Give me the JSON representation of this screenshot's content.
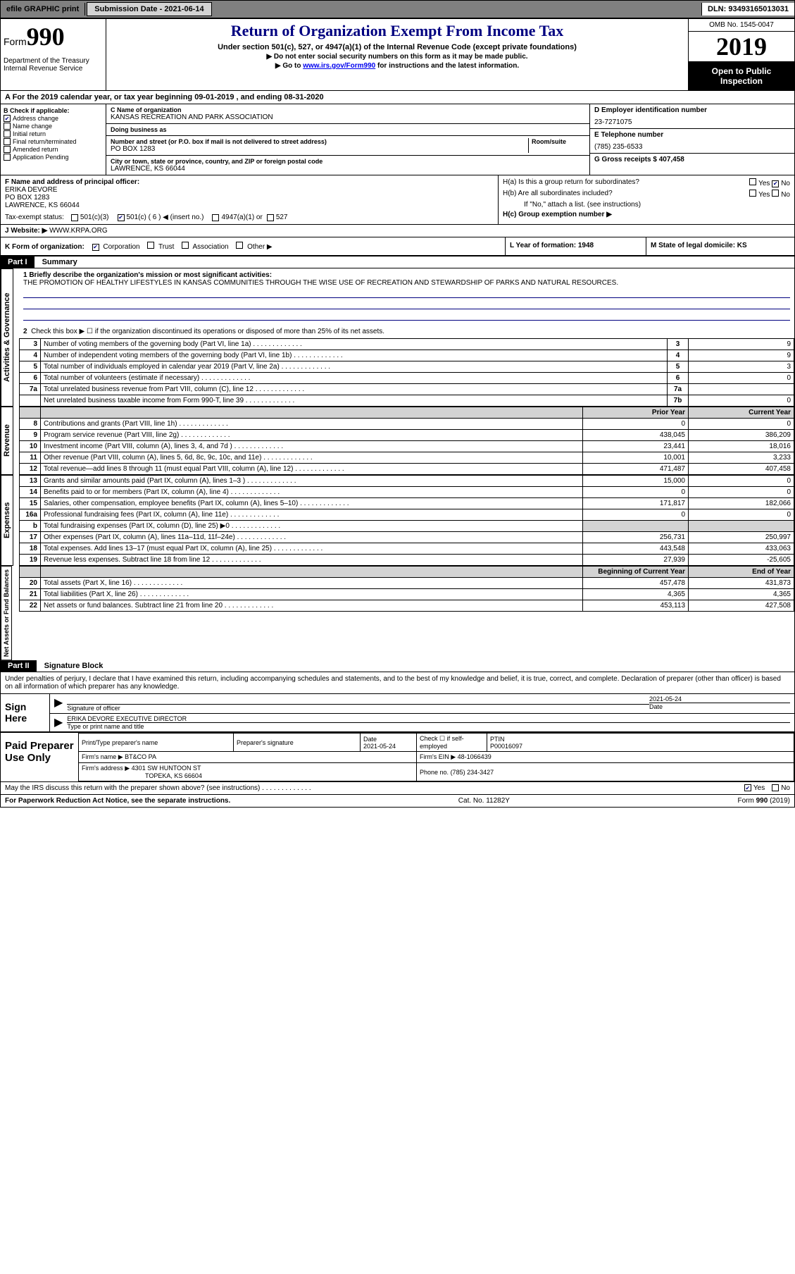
{
  "topbar": {
    "efile": "efile GRAPHIC print",
    "submission_label": "Submission Date - 2021-06-14",
    "dln": "DLN: 93493165013031"
  },
  "header": {
    "form_label": "Form",
    "form_number": "990",
    "dept": "Department of the Treasury\nInternal Revenue Service",
    "title": "Return of Organization Exempt From Income Tax",
    "subtitle": "Under section 501(c), 527, or 4947(a)(1) of the Internal Revenue Code (except private foundations)",
    "instr1": "▶ Do not enter social security numbers on this form as it may be made public.",
    "instr2_pre": "▶ Go to ",
    "instr2_link": "www.irs.gov/Form990",
    "instr2_post": " for instructions and the latest information.",
    "omb": "OMB No. 1545-0047",
    "year": "2019",
    "inspection": "Open to Public Inspection"
  },
  "period": "A For the 2019 calendar year, or tax year beginning 09-01-2019   , and ending 08-31-2020",
  "section_b": {
    "label": "B Check if applicable:",
    "items": [
      "Address change",
      "Name change",
      "Initial return",
      "Final return/terminated",
      "Amended return",
      "Application Pending"
    ],
    "checked_index": 0
  },
  "section_c": {
    "name_label": "C Name of organization",
    "name": "KANSAS RECREATION AND PARK ASSOCIATION",
    "dba_label": "Doing business as",
    "dba": "",
    "addr_label": "Number and street (or P.O. box if mail is not delivered to street address)",
    "room_label": "Room/suite",
    "addr": "PO BOX 1283",
    "city_label": "City or town, state or province, country, and ZIP or foreign postal code",
    "city": "LAWRENCE, KS  66044"
  },
  "section_d": {
    "label": "D Employer identification number",
    "value": "23-7271075"
  },
  "section_e": {
    "label": "E Telephone number",
    "value": "(785) 235-6533"
  },
  "section_g": {
    "label": "G Gross receipts $ 407,458"
  },
  "section_f": {
    "label": "F  Name and address of principal officer:",
    "name": "ERIKA DEVORE",
    "addr1": "PO BOX 1283",
    "addr2": "LAWRENCE, KS  66044"
  },
  "section_h": {
    "ha": "H(a)  Is this a group return for subordinates?",
    "ha_yes": "Yes",
    "ha_no": "No",
    "hb": "H(b)  Are all subordinates included?",
    "hb_yes": "Yes",
    "hb_no": "No",
    "hb_note": "If \"No,\" attach a list. (see instructions)",
    "hc": "H(c)  Group exemption number ▶"
  },
  "tax_status": {
    "label": "Tax-exempt status:",
    "opt1": "501(c)(3)",
    "opt2": "501(c) ( 6 ) ◀ (insert no.)",
    "opt3": "4947(a)(1) or",
    "opt4": "527"
  },
  "section_j": {
    "label": "J",
    "text": "Website: ▶",
    "value": "WWW.KRPA.ORG"
  },
  "section_k": {
    "label": "K Form of organization:",
    "opts": [
      "Corporation",
      "Trust",
      "Association",
      "Other ▶"
    ]
  },
  "section_l": {
    "label": "L Year of formation: 1948"
  },
  "section_m": {
    "label": "M State of legal domicile: KS"
  },
  "part1": {
    "header": "Part I",
    "title": "Summary",
    "line1_label": "1  Briefly describe the organization's mission or most significant activities:",
    "line1_text": "THE PROMOTION OF HEALTHY LIFESTYLES IN KANSAS COMMUNITIES THROUGH THE WISE USE OF RECREATION AND STEWARDSHIP OF PARKS AND NATURAL RESOURCES.",
    "line2": "Check this box ▶ ☐  if the organization discontinued its operations or disposed of more than 25% of its net assets.",
    "governance": [
      {
        "n": "3",
        "t": "Number of voting members of the governing body (Part VI, line 1a)",
        "b": "3",
        "v": "9"
      },
      {
        "n": "4",
        "t": "Number of independent voting members of the governing body (Part VI, line 1b)",
        "b": "4",
        "v": "9"
      },
      {
        "n": "5",
        "t": "Total number of individuals employed in calendar year 2019 (Part V, line 2a)",
        "b": "5",
        "v": "3"
      },
      {
        "n": "6",
        "t": "Total number of volunteers (estimate if necessary)",
        "b": "6",
        "v": "0"
      },
      {
        "n": "7a",
        "t": "Total unrelated business revenue from Part VIII, column (C), line 12",
        "b": "7a",
        "v": ""
      },
      {
        "n": "",
        "t": "Net unrelated business taxable income from Form 990-T, line 39",
        "b": "7b",
        "v": "0"
      }
    ],
    "col_headers": {
      "prior": "Prior Year",
      "current": "Current Year"
    },
    "revenue": [
      {
        "n": "8",
        "t": "Contributions and grants (Part VIII, line 1h)",
        "p": "0",
        "c": "0"
      },
      {
        "n": "9",
        "t": "Program service revenue (Part VIII, line 2g)",
        "p": "438,045",
        "c": "386,209"
      },
      {
        "n": "10",
        "t": "Investment income (Part VIII, column (A), lines 3, 4, and 7d )",
        "p": "23,441",
        "c": "18,016"
      },
      {
        "n": "11",
        "t": "Other revenue (Part VIII, column (A), lines 5, 6d, 8c, 9c, 10c, and 11e)",
        "p": "10,001",
        "c": "3,233"
      },
      {
        "n": "12",
        "t": "Total revenue—add lines 8 through 11 (must equal Part VIII, column (A), line 12)",
        "p": "471,487",
        "c": "407,458"
      }
    ],
    "expenses": [
      {
        "n": "13",
        "t": "Grants and similar amounts paid (Part IX, column (A), lines 1–3 )",
        "p": "15,000",
        "c": "0"
      },
      {
        "n": "14",
        "t": "Benefits paid to or for members (Part IX, column (A), line 4)",
        "p": "0",
        "c": "0"
      },
      {
        "n": "15",
        "t": "Salaries, other compensation, employee benefits (Part IX, column (A), lines 5–10)",
        "p": "171,817",
        "c": "182,066"
      },
      {
        "n": "16a",
        "t": "Professional fundraising fees (Part IX, column (A), line 11e)",
        "p": "0",
        "c": "0"
      },
      {
        "n": "b",
        "t": "Total fundraising expenses (Part IX, column (D), line 25) ▶0",
        "p": "",
        "c": "",
        "shaded": true
      },
      {
        "n": "17",
        "t": "Other expenses (Part IX, column (A), lines 11a–11d, 11f–24e)",
        "p": "256,731",
        "c": "250,997"
      },
      {
        "n": "18",
        "t": "Total expenses. Add lines 13–17 (must equal Part IX, column (A), line 25)",
        "p": "443,548",
        "c": "433,063"
      },
      {
        "n": "19",
        "t": "Revenue less expenses. Subtract line 18 from line 12",
        "p": "27,939",
        "c": "-25,605"
      }
    ],
    "net_headers": {
      "begin": "Beginning of Current Year",
      "end": "End of Year"
    },
    "net": [
      {
        "n": "20",
        "t": "Total assets (Part X, line 16)",
        "p": "457,478",
        "c": "431,873"
      },
      {
        "n": "21",
        "t": "Total liabilities (Part X, line 26)",
        "p": "4,365",
        "c": "4,365"
      },
      {
        "n": "22",
        "t": "Net assets or fund balances. Subtract line 21 from line 20",
        "p": "453,113",
        "c": "427,508"
      }
    ],
    "side_labels": {
      "gov": "Activities & Governance",
      "rev": "Revenue",
      "exp": "Expenses",
      "net": "Net Assets or Fund Balances"
    }
  },
  "part2": {
    "header": "Part II",
    "title": "Signature Block",
    "declaration": "Under penalties of perjury, I declare that I have examined this return, including accompanying schedules and statements, and to the best of my knowledge and belief, it is true, correct, and complete. Declaration of preparer (other than officer) is based on all information of which preparer has any knowledge.",
    "sign_here": "Sign Here",
    "sig_officer": "Signature of officer",
    "sig_date_label": "Date",
    "sig_date": "2021-05-24",
    "sig_name": "ERIKA DEVORE  EXECUTIVE DIRECTOR",
    "sig_name_label": "Type or print name and title",
    "paid_prep": "Paid Preparer Use Only",
    "prep_name_label": "Print/Type preparer's name",
    "prep_sig_label": "Preparer's signature",
    "prep_date_label": "Date",
    "prep_date": "2021-05-24",
    "prep_check_label": "Check ☐ if self-employed",
    "prep_ptin_label": "PTIN",
    "prep_ptin": "P00016097",
    "firm_name_label": "Firm's name   ▶",
    "firm_name": "BT&CO PA",
    "firm_ein_label": "Firm's EIN ▶",
    "firm_ein": "48-1066439",
    "firm_addr_label": "Firm's address ▶",
    "firm_addr1": "4301 SW HUNTOON ST",
    "firm_addr2": "TOPEKA, KS  66604",
    "firm_phone_label": "Phone no.",
    "firm_phone": "(785) 234-3427",
    "discuss": "May the IRS discuss this return with the preparer shown above? (see instructions)",
    "discuss_yes": "Yes",
    "discuss_no": "No"
  },
  "footer": {
    "left": "For Paperwork Reduction Act Notice, see the separate instructions.",
    "center": "Cat. No. 11282Y",
    "right": "Form 990 (2019)"
  }
}
